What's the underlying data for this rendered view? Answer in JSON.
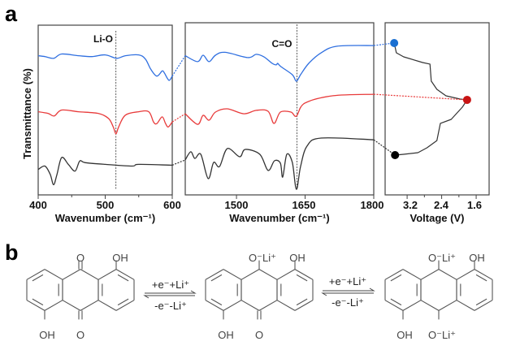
{
  "panels": {
    "a": "a",
    "b": "b"
  },
  "chart_data": [
    {
      "type": "line",
      "xlabel": "Wavenumber (cm⁻¹)",
      "ylabel": "Transmittance (%)",
      "xlim": [
        400,
        600
      ],
      "ylim": [
        0,
        100
      ],
      "xticks": [
        "400",
        "500",
        "600"
      ],
      "minor_xticks": [
        450,
        550
      ],
      "grid": false,
      "annotation": {
        "text": "Li-O",
        "x": 516
      },
      "series": [
        {
          "color": "#2f6fe0",
          "points": [
            [
              400,
              82
            ],
            [
              410,
              81.5
            ],
            [
              423,
              80.5
            ],
            [
              435,
              83
            ],
            [
              460,
              82
            ],
            [
              480,
              81.5
            ],
            [
              500,
              82.5
            ],
            [
              517,
              80.5
            ],
            [
              530,
              82
            ],
            [
              550,
              82.5
            ],
            [
              560,
              80
            ],
            [
              568,
              74
            ],
            [
              577,
              70
            ],
            [
              585,
              73
            ],
            [
              588,
              72
            ],
            [
              595,
              67.5
            ],
            [
              600,
              70
            ]
          ]
        },
        {
          "color": "#e83a3a",
          "points": [
            [
              400,
              49
            ],
            [
              415,
              48
            ],
            [
              424,
              46.5
            ],
            [
              435,
              50
            ],
            [
              460,
              49
            ],
            [
              490,
              48
            ],
            [
              505,
              45
            ],
            [
              512,
              40
            ],
            [
              516,
              36
            ],
            [
              520,
              40
            ],
            [
              530,
              47
            ],
            [
              550,
              49
            ],
            [
              565,
              49
            ],
            [
              572,
              43
            ],
            [
              577,
              42
            ],
            [
              585,
              46
            ],
            [
              590,
              42
            ],
            [
              594,
              40
            ],
            [
              600,
              43
            ]
          ]
        },
        {
          "color": "#333333",
          "points": [
            [
              400,
              15
            ],
            [
              410,
              17
            ],
            [
              418,
              12
            ],
            [
              423,
              6
            ],
            [
              428,
              12
            ],
            [
              435,
              22
            ],
            [
              445,
              18
            ],
            [
              455,
              14
            ],
            [
              462,
              20
            ],
            [
              470,
              19
            ],
            [
              500,
              18
            ],
            [
              540,
              17
            ],
            [
              550,
              18
            ],
            [
              600,
              17.5
            ]
          ]
        }
      ]
    },
    {
      "type": "line",
      "xlabel": "Wavenumber (cm⁻¹)",
      "xlim": [
        1388,
        1800
      ],
      "ylim": [
        0,
        100
      ],
      "xticks": [
        "1500",
        "1650",
        "1800"
      ],
      "grid": false,
      "annotation": {
        "text": "C=O",
        "x": 1632
      },
      "series": [
        {
          "color": "#2f6fe0",
          "points": [
            [
              1388,
              82
            ],
            [
              1415,
              78.5
            ],
            [
              1427,
              82.3
            ],
            [
              1440,
              78.5
            ],
            [
              1454,
              82.3
            ],
            [
              1475,
              84
            ],
            [
              1525,
              80.9
            ],
            [
              1543,
              82.8
            ],
            [
              1560,
              81.3
            ],
            [
              1578,
              77.5
            ],
            [
              1587,
              76.6
            ],
            [
              1590,
              77.5
            ],
            [
              1597,
              75.6
            ],
            [
              1622,
              70.8
            ],
            [
              1631,
              67
            ],
            [
              1640,
              70.8
            ],
            [
              1658,
              77.5
            ],
            [
              1685,
              83.7
            ],
            [
              1720,
              87.6
            ],
            [
              1800,
              88
            ]
          ]
        },
        {
          "color": "#e83a3a",
          "points": [
            [
              1388,
              47.8
            ],
            [
              1415,
              41.6
            ],
            [
              1427,
              46.9
            ],
            [
              1440,
              44
            ],
            [
              1454,
              48.8
            ],
            [
              1480,
              50.7
            ],
            [
              1516,
              47.8
            ],
            [
              1543,
              49.8
            ],
            [
              1569,
              49.3
            ],
            [
              1582,
              42.1
            ],
            [
              1596,
              48.8
            ],
            [
              1619,
              48.8
            ],
            [
              1631,
              46.4
            ],
            [
              1649,
              54
            ],
            [
              1711,
              58.4
            ],
            [
              1800,
              59.3
            ]
          ]
        },
        {
          "color": "#333333",
          "points": [
            [
              1388,
              20.6
            ],
            [
              1400,
              25.4
            ],
            [
              1409,
              21.5
            ],
            [
              1422,
              23.9
            ],
            [
              1438,
              9.6
            ],
            [
              1450,
              19.1
            ],
            [
              1463,
              16.7
            ],
            [
              1480,
              27.3
            ],
            [
              1507,
              22.5
            ],
            [
              1519,
              26.8
            ],
            [
              1551,
              23.9
            ],
            [
              1569,
              14.4
            ],
            [
              1583,
              20.1
            ],
            [
              1596,
              18.7
            ],
            [
              1601,
              10.5
            ],
            [
              1610,
              23.9
            ],
            [
              1622,
              19.1
            ],
            [
              1631,
              3.3
            ],
            [
              1640,
              16.7
            ],
            [
              1654,
              28.7
            ],
            [
              1685,
              33.5
            ],
            [
              1800,
              32.5
            ]
          ]
        }
      ]
    },
    {
      "type": "line",
      "xlabel": "Voltage (V)",
      "xlim": [
        3.71,
        1.3
      ],
      "ylim": [
        0,
        1
      ],
      "xticks": [
        "3.2",
        "2.4",
        "1.6"
      ],
      "minor_xticks": [
        2.8,
        2.0
      ],
      "grid": false,
      "series": [
        {
          "color": "#333333",
          "points": [
            [
              3.5,
              0
            ],
            [
              3.45,
              0.087
            ],
            [
              3.28,
              0.123
            ],
            [
              2.84,
              0.174
            ],
            [
              2.67,
              0.188
            ],
            [
              2.64,
              0.34
            ],
            [
              2.51,
              0.413
            ],
            [
              2.3,
              0.471
            ],
            [
              1.97,
              0.5
            ],
            [
              1.81,
              0.507
            ],
            [
              1.92,
              0.572
            ],
            [
              2.18,
              0.681
            ],
            [
              2.43,
              0.717
            ],
            [
              2.51,
              0.87
            ],
            [
              2.74,
              0.935
            ],
            [
              2.95,
              0.978
            ],
            [
              3.28,
              0.993
            ],
            [
              3.48,
              1
            ]
          ]
        }
      ],
      "markers": [
        {
          "color": "#1a6fd1",
          "point": [
            3.5,
            0
          ]
        },
        {
          "color": "#c81414",
          "point": [
            1.81,
            0.507
          ]
        },
        {
          "color": "#000000",
          "point": [
            3.48,
            1
          ]
        }
      ]
    }
  ],
  "scheme": {
    "arrows": [
      {
        "forward": "+e⁻+Li⁺",
        "backward": "-e⁻-Li⁺"
      },
      {
        "forward": "+e⁻+Li⁺",
        "backward": "-e⁻-Li⁺"
      }
    ],
    "molecules": [
      {
        "top": "O",
        "top_right": "OH",
        "bottom_left": "OH",
        "bottom": "O"
      },
      {
        "top": "O⁻Li⁺",
        "top_right": "OH",
        "bottom_left": "OH",
        "bottom": "O"
      },
      {
        "top": "O⁻Li⁺",
        "top_right": "OH",
        "bottom_left": "OH",
        "bottom": "O⁻Li⁺"
      }
    ]
  }
}
